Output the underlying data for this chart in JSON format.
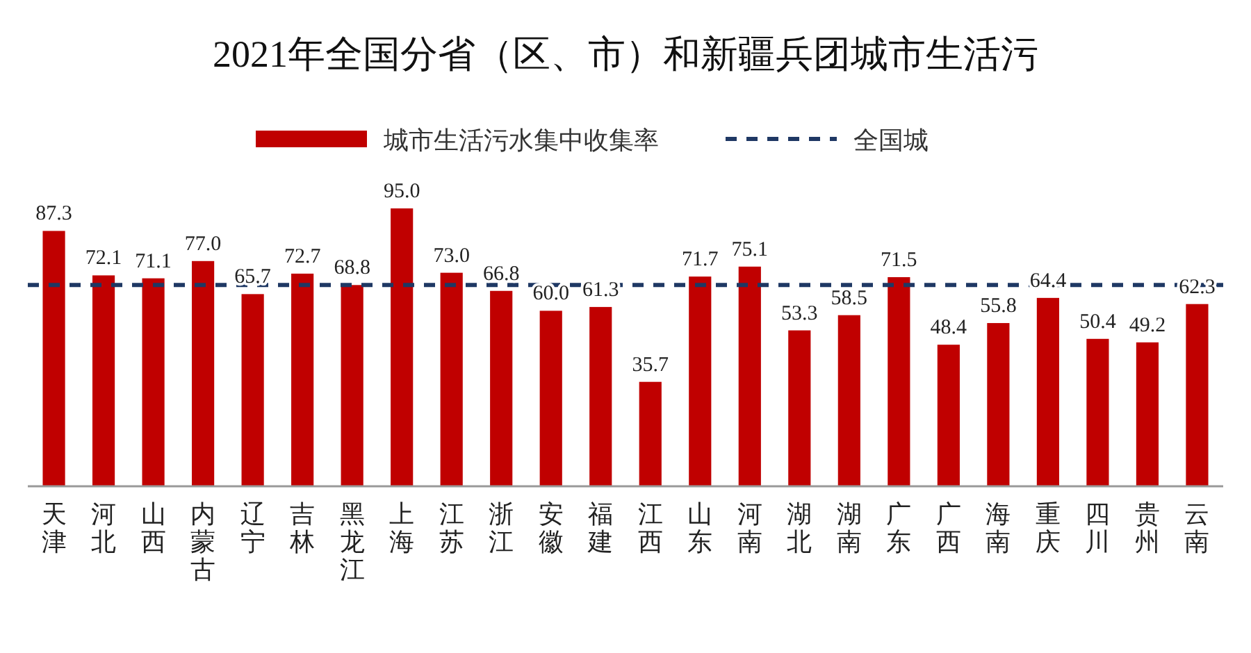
{
  "chart_data": {
    "type": "bar",
    "title": "2021年全国分省（区、市）和新疆兵团城市生活污",
    "categories": [
      "天津",
      "河北",
      "山西",
      "内蒙古",
      "辽宁",
      "吉林",
      "黑龙江",
      "上海",
      "江苏",
      "浙江",
      "安徽",
      "福建",
      "江西",
      "山东",
      "河南",
      "湖北",
      "湖南",
      "广东",
      "广西",
      "海南",
      "重庆",
      "四川",
      "贵州",
      "云南"
    ],
    "series": [
      {
        "name": "城市生活污水集中收集率",
        "color": "#c00000",
        "values": [
          87.3,
          72.1,
          71.1,
          77.0,
          65.7,
          72.7,
          68.8,
          95.0,
          73.0,
          66.8,
          60.0,
          61.3,
          35.7,
          71.7,
          75.1,
          53.3,
          58.5,
          71.5,
          48.4,
          55.8,
          64.4,
          50.4,
          49.2,
          62.3
        ],
        "value_labels": [
          "87.3",
          "72.1",
          "71.1",
          "77.0",
          "65.7",
          "72.7",
          "68.8",
          "95.0",
          "73.0",
          "66.8",
          "60.0",
          "61.3",
          "35.7",
          "71.7",
          "75.1",
          "53.3",
          "58.5",
          "71.5",
          "48.4",
          "55.8",
          "64.4",
          "50.4",
          "49.2",
          "62.3"
        ]
      }
    ],
    "legend": "top",
    "ref_lines": [
      {
        "axis": "y",
        "value": 68.8,
        "label": "全国城",
        "color": "#1f3864",
        "line_style": "dashed"
      }
    ]
  }
}
